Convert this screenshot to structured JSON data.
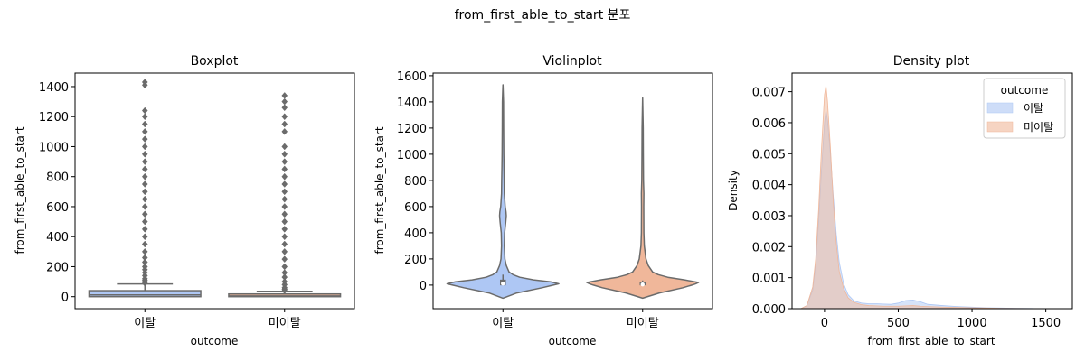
{
  "figure": {
    "suptitle": "from_first_able_to_start 분포"
  },
  "chart_data": [
    {
      "type": "box",
      "title": "Boxplot",
      "xlabel": "outcome",
      "ylabel": "from_first_able_to_start",
      "ylim": [
        -80,
        1490
      ],
      "yticks": [
        0,
        200,
        400,
        600,
        800,
        1000,
        1200,
        1400
      ],
      "categories": [
        "이탈",
        "미이탈"
      ],
      "colors": [
        "#aec7f4",
        "#f0b79a"
      ],
      "boxes": [
        {
          "name": "이탈",
          "q1": 0,
          "median": 12,
          "q3": 40,
          "whisker_low": 0,
          "whisker_high": 85,
          "outliers": [
            90,
            100,
            110,
            120,
            140,
            160,
            180,
            200,
            230,
            260,
            300,
            350,
            400,
            450,
            500,
            550,
            600,
            650,
            700,
            750,
            800,
            850,
            900,
            950,
            1000,
            1050,
            1100,
            1150,
            1200,
            1240,
            1410,
            1430
          ]
        },
        {
          "name": "미이탈",
          "q1": 0,
          "median": 5,
          "q3": 18,
          "whisker_low": 0,
          "whisker_high": 36,
          "outliers": [
            40,
            50,
            60,
            80,
            100,
            130,
            160,
            200,
            250,
            300,
            350,
            400,
            450,
            500,
            550,
            600,
            650,
            700,
            750,
            800,
            850,
            900,
            950,
            1000,
            1100,
            1150,
            1200,
            1260,
            1300,
            1340
          ]
        }
      ]
    },
    {
      "type": "violin",
      "title": "Violinplot",
      "xlabel": "outcome",
      "ylabel": "from_first_able_to_start",
      "ylim": [
        -180,
        1620
      ],
      "yticks": [
        0,
        200,
        400,
        600,
        800,
        1000,
        1200,
        1400,
        1600
      ],
      "categories": [
        "이탈",
        "미이탈"
      ],
      "colors": [
        "#aec7f4",
        "#f0b79a"
      ],
      "violins": [
        {
          "name": "이탈",
          "q1": 0,
          "median": 12,
          "q3": 40,
          "whisker_low": 0,
          "whisker_high": 80,
          "profile": [
            [
              -100,
              0.0
            ],
            [
              -60,
              0.25
            ],
            [
              -20,
              0.7
            ],
            [
              0,
              0.9
            ],
            [
              10,
              1.0
            ],
            [
              25,
              0.85
            ],
            [
              40,
              0.55
            ],
            [
              60,
              0.3
            ],
            [
              80,
              0.18
            ],
            [
              100,
              0.11
            ],
            [
              150,
              0.06
            ],
            [
              200,
              0.035
            ],
            [
              300,
              0.025
            ],
            [
              400,
              0.03
            ],
            [
              480,
              0.05
            ],
            [
              530,
              0.06
            ],
            [
              560,
              0.055
            ],
            [
              600,
              0.04
            ],
            [
              700,
              0.025
            ],
            [
              800,
              0.022
            ],
            [
              900,
              0.018
            ],
            [
              1000,
              0.015
            ],
            [
              1200,
              0.012
            ],
            [
              1400,
              0.01
            ],
            [
              1530,
              0.0
            ]
          ]
        },
        {
          "name": "미이탈",
          "q1": 0,
          "median": 5,
          "q3": 20,
          "whisker_low": 0,
          "whisker_high": 35,
          "profile": [
            [
              -100,
              0.0
            ],
            [
              -60,
              0.3
            ],
            [
              -20,
              0.72
            ],
            [
              0,
              0.88
            ],
            [
              10,
              0.95
            ],
            [
              20,
              1.0
            ],
            [
              40,
              0.75
            ],
            [
              60,
              0.45
            ],
            [
              80,
              0.28
            ],
            [
              100,
              0.18
            ],
            [
              150,
              0.1
            ],
            [
              200,
              0.06
            ],
            [
              300,
              0.03
            ],
            [
              400,
              0.022
            ],
            [
              600,
              0.02
            ],
            [
              700,
              0.022
            ],
            [
              800,
              0.015
            ],
            [
              1000,
              0.012
            ],
            [
              1200,
              0.01
            ],
            [
              1430,
              0.0
            ]
          ]
        }
      ]
    },
    {
      "type": "area",
      "title": "Density plot",
      "xlabel": "from_first_able_to_start",
      "ylabel": "Density",
      "xlim": [
        -220,
        1680
      ],
      "ylim": [
        0,
        0.0076
      ],
      "xticks": [
        0,
        500,
        1000,
        1500
      ],
      "yticks": [
        0.0,
        0.001,
        0.002,
        0.003,
        0.004,
        0.005,
        0.006,
        0.007
      ],
      "ytick_labels": [
        "0.000",
        "0.001",
        "0.002",
        "0.003",
        "0.004",
        "0.005",
        "0.006",
        "0.007"
      ],
      "legend": {
        "title": "outcome",
        "placement": "top-right"
      },
      "series": [
        {
          "name": "이탈",
          "color": "#aec7f4",
          "x": [
            -160,
            -120,
            -80,
            -60,
            -40,
            -20,
            0,
            10,
            20,
            40,
            60,
            80,
            100,
            130,
            160,
            200,
            250,
            300,
            350,
            400,
            450,
            500,
            550,
            600,
            650,
            700,
            800,
            900,
            1000,
            1100,
            1200,
            1300,
            1400,
            1500,
            1600
          ],
          "y": [
            0.0,
            0.0001,
            0.0006,
            0.0014,
            0.0028,
            0.0045,
            0.006,
            0.0064,
            0.0061,
            0.005,
            0.0036,
            0.0024,
            0.0015,
            0.0008,
            0.00045,
            0.00025,
            0.00018,
            0.00016,
            0.00016,
            0.00015,
            0.00014,
            0.00018,
            0.00026,
            0.00028,
            0.00022,
            0.00014,
            0.0001,
            7e-05,
            5e-05,
            3e-05,
            2e-05,
            1e-05,
            5e-06,
            2e-06,
            0.0
          ]
        },
        {
          "name": "미이탈",
          "color": "#f0b79a",
          "x": [
            -160,
            -120,
            -80,
            -60,
            -40,
            -20,
            0,
            10,
            20,
            40,
            60,
            80,
            100,
            130,
            160,
            200,
            250,
            300,
            350,
            400,
            450,
            500,
            550,
            600,
            650,
            700,
            800,
            900,
            1000,
            1100,
            1200,
            1300,
            1400,
            1500,
            1600
          ],
          "y": [
            0.0,
            0.0001,
            0.0007,
            0.0016,
            0.0032,
            0.0052,
            0.0069,
            0.0072,
            0.0067,
            0.0052,
            0.0034,
            0.0021,
            0.0012,
            0.00065,
            0.00035,
            0.0002,
            0.00013,
            0.0001,
            9e-05,
            8e-05,
            8e-05,
            8e-05,
            9e-05,
            0.0001,
            8e-05,
            7e-05,
            5e-05,
            4e-05,
            3e-05,
            2e-05,
            1e-05,
            6e-06,
            3e-06,
            1e-06,
            0.0
          ]
        }
      ]
    }
  ]
}
